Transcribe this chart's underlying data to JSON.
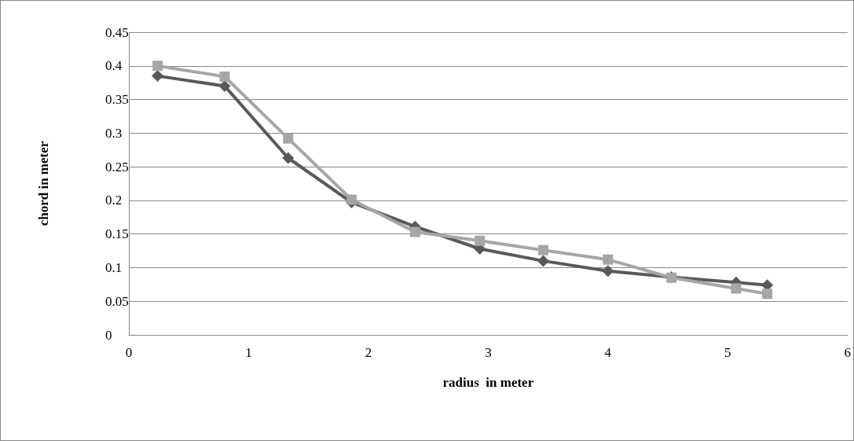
{
  "chart_data": {
    "type": "line",
    "xlabel": "radius  in meter",
    "ylabel": "chord in meter",
    "xlim": [
      0,
      6
    ],
    "xticks": [
      0,
      1,
      2,
      3,
      4,
      5,
      6
    ],
    "ylim": [
      0,
      0.45
    ],
    "yticks": [
      0,
      0.05,
      0.1,
      0.15,
      0.2,
      0.25,
      0.3,
      0.35,
      0.4,
      0.45
    ],
    "grid": "y",
    "series": [
      {
        "color": "#595959",
        "marker": "diamond",
        "x": [
          0.24,
          0.8,
          1.33,
          1.86,
          2.39,
          2.93,
          3.46,
          4.0,
          4.53,
          5.07,
          5.33
        ],
        "values": [
          0.385,
          0.37,
          0.263,
          0.197,
          0.161,
          0.128,
          0.11,
          0.095,
          0.086,
          0.078,
          0.074
        ]
      },
      {
        "color": "#a6a6a6",
        "marker": "square",
        "x": [
          0.24,
          0.8,
          1.33,
          1.86,
          2.39,
          2.93,
          3.46,
          4.0,
          4.53,
          5.07,
          5.33
        ],
        "values": [
          0.4,
          0.384,
          0.292,
          0.201,
          0.153,
          0.14,
          0.126,
          0.112,
          0.085,
          0.069,
          0.061
        ]
      }
    ]
  }
}
